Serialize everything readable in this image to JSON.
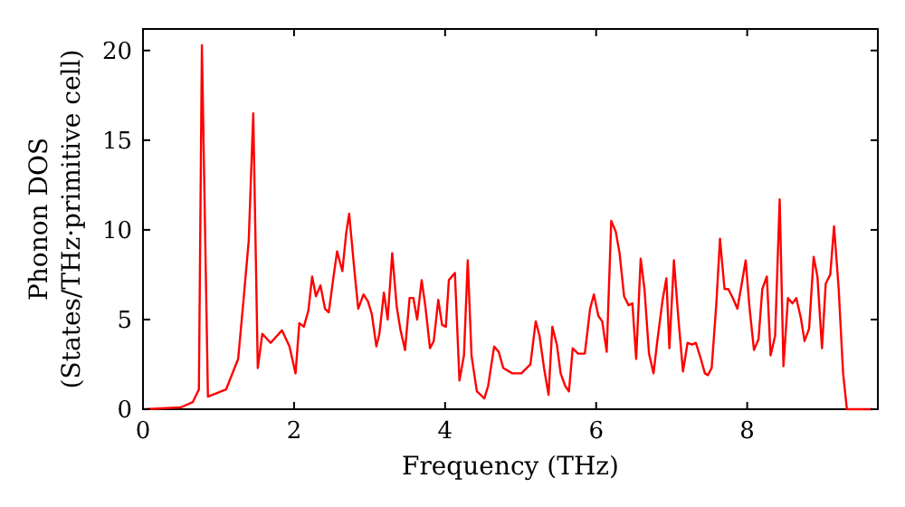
{
  "chart_data": {
    "type": "line",
    "xlabel": "Frequency (THz)",
    "ylabel": "Phonon DOS\n(States/THz·primitive cell)",
    "xlim": [
      0,
      9.73
    ],
    "ylim": [
      0,
      21.2
    ],
    "xticks": [
      0,
      2,
      4,
      6,
      8
    ],
    "yticks": [
      0,
      5,
      10,
      15,
      20
    ],
    "grid": false,
    "marker": "none",
    "line_style": "solid",
    "series": [
      {
        "color": "#ff0000",
        "x": [
          0.02,
          0.5,
          0.66,
          0.74,
          0.78,
          0.86,
          1.1,
          1.26,
          1.34,
          1.4,
          1.46,
          1.52,
          1.58,
          1.69,
          1.84,
          1.94,
          2.02,
          2.07,
          2.13,
          2.19,
          2.24,
          2.29,
          2.35,
          2.41,
          2.46,
          2.52,
          2.57,
          2.64,
          2.69,
          2.73,
          2.8,
          2.85,
          2.92,
          2.98,
          3.03,
          3.09,
          3.13,
          3.19,
          3.24,
          3.3,
          3.36,
          3.41,
          3.47,
          3.53,
          3.58,
          3.63,
          3.69,
          3.74,
          3.8,
          3.85,
          3.91,
          3.96,
          4.01,
          4.05,
          4.13,
          4.19,
          4.25,
          4.3,
          4.35,
          4.42,
          4.52,
          4.57,
          4.65,
          4.71,
          4.77,
          4.89,
          5.01,
          5.13,
          5.2,
          5.25,
          5.31,
          5.37,
          5.42,
          5.48,
          5.53,
          5.59,
          5.64,
          5.69,
          5.76,
          5.85,
          5.92,
          5.97,
          6.03,
          6.08,
          6.14,
          6.2,
          6.26,
          6.31,
          6.37,
          6.43,
          6.48,
          6.53,
          6.59,
          6.64,
          6.7,
          6.76,
          6.81,
          6.88,
          6.93,
          6.97,
          7.03,
          7.09,
          7.15,
          7.21,
          7.27,
          7.32,
          7.38,
          7.44,
          7.48,
          7.53,
          7.59,
          7.64,
          7.7,
          7.75,
          7.81,
          7.87,
          7.92,
          7.98,
          8.03,
          8.09,
          8.15,
          8.2,
          8.26,
          8.31,
          8.37,
          8.43,
          8.48,
          8.54,
          8.6,
          8.65,
          8.71,
          8.76,
          8.82,
          8.88,
          8.93,
          8.99,
          9.04,
          9.1,
          9.15,
          9.21,
          9.27,
          9.32,
          9.65
        ],
        "values": [
          0,
          0.1,
          0.4,
          1.1,
          20.3,
          0.7,
          1.1,
          2.8,
          6.5,
          9.4,
          16.5,
          2.3,
          4.2,
          3.7,
          4.4,
          3.5,
          2.0,
          4.8,
          4.6,
          5.5,
          7.4,
          6.3,
          6.9,
          5.6,
          5.4,
          7.3,
          8.8,
          7.7,
          9.8,
          10.9,
          7.7,
          5.6,
          6.4,
          6.0,
          5.3,
          3.5,
          4.2,
          6.5,
          5.0,
          8.7,
          5.7,
          4.4,
          3.3,
          6.2,
          6.2,
          5.0,
          7.2,
          5.7,
          3.4,
          3.8,
          6.1,
          4.7,
          4.6,
          7.2,
          7.6,
          1.6,
          3.0,
          8.3,
          3.0,
          1.0,
          0.6,
          1.3,
          3.5,
          3.2,
          2.3,
          2.0,
          2.0,
          2.5,
          4.9,
          4.1,
          2.3,
          0.8,
          4.6,
          3.6,
          2.0,
          1.3,
          1.0,
          3.4,
          3.1,
          3.1,
          5.6,
          6.4,
          5.2,
          4.9,
          3.2,
          10.5,
          9.9,
          8.7,
          6.3,
          5.8,
          5.9,
          2.8,
          8.4,
          6.7,
          3.1,
          2.0,
          3.8,
          6.1,
          7.3,
          3.4,
          8.3,
          5.0,
          2.1,
          3.7,
          3.6,
          3.7,
          2.9,
          2.0,
          1.9,
          2.3,
          5.8,
          9.5,
          6.7,
          6.7,
          6.2,
          5.6,
          6.8,
          8.3,
          5.7,
          3.3,
          3.9,
          6.7,
          7.4,
          3.0,
          4.1,
          11.7,
          2.4,
          6.2,
          5.9,
          6.2,
          5.1,
          3.8,
          4.5,
          8.5,
          7.4,
          3.4,
          7.0,
          7.5,
          10.2,
          6.8,
          2.0,
          0,
          0
        ]
      }
    ]
  }
}
